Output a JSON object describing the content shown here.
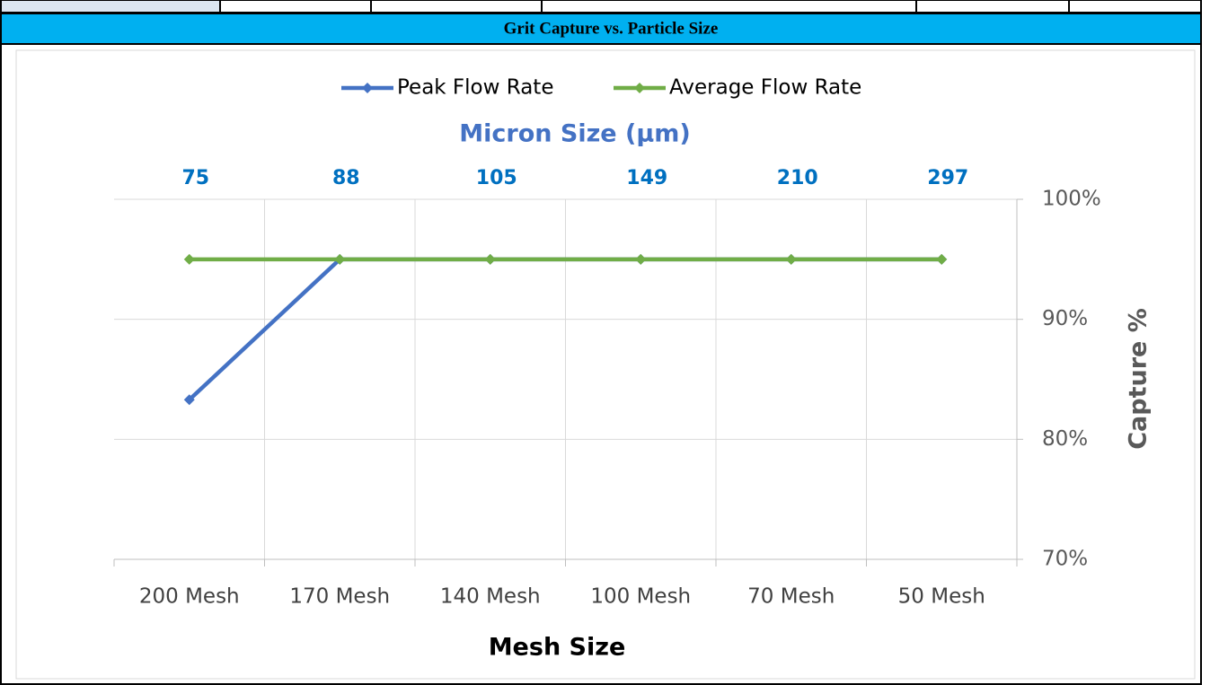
{
  "chart_data": {
    "type": "line",
    "title": "Grit Capture vs. Particle Size",
    "top_axis_title": "Micron Size (µm)",
    "top_categories": [
      "75",
      "88",
      "105",
      "149",
      "210",
      "297"
    ],
    "categories": [
      "200 Mesh",
      "170 Mesh",
      "140 Mesh",
      "100 Mesh",
      "70 Mesh",
      "50 Mesh"
    ],
    "xlabel": "Mesh Size",
    "ylabel": "Capture %",
    "series": [
      {
        "name": "Peak Flow Rate",
        "color": "#4472c4",
        "values": [
          83.3,
          95,
          95,
          95,
          95,
          95
        ]
      },
      {
        "name": "Average Flow Rate",
        "color": "#70ad47",
        "values": [
          95,
          95,
          95,
          95,
          95,
          95
        ]
      }
    ],
    "ylim": [
      70,
      100
    ],
    "yticks": [
      {
        "value": 70,
        "label": "70%"
      },
      {
        "value": 80,
        "label": "80%"
      },
      {
        "value": 90,
        "label": "90%"
      },
      {
        "value": 100,
        "label": "100%"
      }
    ],
    "grid": true,
    "legend": "top"
  }
}
